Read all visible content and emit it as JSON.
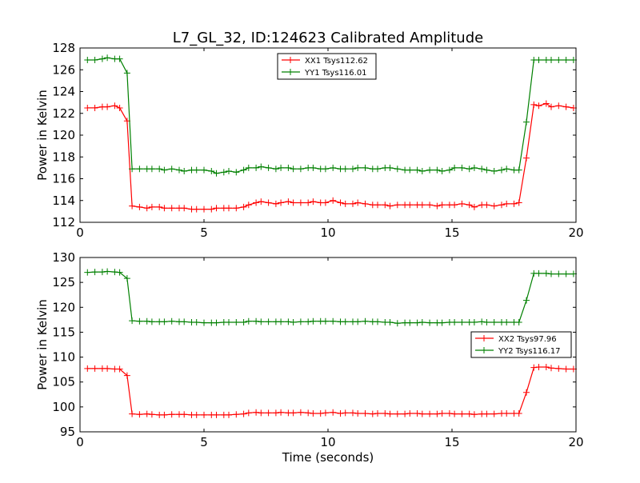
{
  "figure": {
    "title": "L7_GL_32, ID:124623 Calibrated Amplitude",
    "xlabel": "Time (seconds)"
  },
  "chart_data": [
    {
      "type": "line",
      "title": "L7_GL_32, ID:124623 Calibrated Amplitude",
      "xlabel": "",
      "ylabel": "Power in Kelvin",
      "xlim": [
        0,
        20
      ],
      "ylim": [
        112,
        128
      ],
      "xticks": [
        "0",
        "5",
        "10",
        "15",
        "20"
      ],
      "yticks": [
        "112",
        "114",
        "116",
        "118",
        "120",
        "122",
        "124",
        "126",
        "128"
      ],
      "grid": false,
      "legend": "top-center",
      "x": [
        0.3,
        0.6,
        0.9,
        1.1,
        1.4,
        1.6,
        1.9,
        2.1,
        2.4,
        2.7,
        2.9,
        3.2,
        3.4,
        3.7,
        4.0,
        4.2,
        4.5,
        4.7,
        5.0,
        5.3,
        5.5,
        5.8,
        6.0,
        6.3,
        6.6,
        6.8,
        7.1,
        7.3,
        7.6,
        7.9,
        8.1,
        8.4,
        8.6,
        8.9,
        9.2,
        9.4,
        9.7,
        9.9,
        10.2,
        10.5,
        10.7,
        11.0,
        11.2,
        11.5,
        11.8,
        12.0,
        12.3,
        12.5,
        12.8,
        13.1,
        13.3,
        13.6,
        13.8,
        14.1,
        14.4,
        14.6,
        14.9,
        15.1,
        15.4,
        15.7,
        15.9,
        16.2,
        16.4,
        16.7,
        17.0,
        17.2,
        17.5,
        17.7,
        18.0,
        18.3,
        18.5,
        18.8,
        19.0,
        19.3,
        19.6,
        19.9
      ],
      "series": [
        {
          "name": "XX1 Tsys112.62",
          "color": "#ff0000",
          "values": [
            122.5,
            122.5,
            122.6,
            122.6,
            122.7,
            122.5,
            121.3,
            113.5,
            113.4,
            113.3,
            113.4,
            113.4,
            113.3,
            113.3,
            113.3,
            113.3,
            113.2,
            113.2,
            113.2,
            113.2,
            113.3,
            113.3,
            113.3,
            113.3,
            113.4,
            113.6,
            113.8,
            113.9,
            113.8,
            113.7,
            113.8,
            113.9,
            113.8,
            113.8,
            113.8,
            113.9,
            113.8,
            113.8,
            114.0,
            113.8,
            113.7,
            113.7,
            113.8,
            113.7,
            113.6,
            113.6,
            113.6,
            113.5,
            113.6,
            113.6,
            113.6,
            113.6,
            113.6,
            113.6,
            113.5,
            113.6,
            113.6,
            113.6,
            113.7,
            113.6,
            113.4,
            113.6,
            113.6,
            113.5,
            113.6,
            113.7,
            113.7,
            113.8,
            117.9,
            122.8,
            122.7,
            122.9,
            122.6,
            122.7,
            122.6,
            122.5
          ]
        },
        {
          "name": "YY1 Tsys116.01",
          "color": "#008000",
          "values": [
            126.9,
            126.9,
            127.0,
            127.1,
            127.0,
            127.0,
            125.7,
            116.9,
            116.9,
            116.9,
            116.9,
            116.9,
            116.8,
            116.9,
            116.8,
            116.7,
            116.8,
            116.8,
            116.8,
            116.7,
            116.5,
            116.6,
            116.7,
            116.6,
            116.8,
            117.0,
            117.0,
            117.1,
            117.0,
            116.9,
            117.0,
            117.0,
            116.9,
            116.9,
            117.0,
            117.0,
            116.9,
            116.9,
            117.0,
            116.9,
            116.9,
            116.9,
            117.0,
            117.0,
            116.9,
            116.9,
            117.0,
            117.0,
            116.9,
            116.8,
            116.8,
            116.8,
            116.7,
            116.8,
            116.8,
            116.7,
            116.8,
            117.0,
            117.0,
            116.9,
            117.0,
            116.9,
            116.8,
            116.7,
            116.8,
            116.9,
            116.8,
            116.8,
            121.2,
            126.9,
            126.9,
            126.9,
            126.9,
            126.9,
            126.9,
            126.9
          ]
        }
      ]
    },
    {
      "type": "line",
      "title": "",
      "xlabel": "Time (seconds)",
      "ylabel": "Power in Kelvin",
      "xlim": [
        0,
        20
      ],
      "ylim": [
        95,
        130
      ],
      "xticks": [
        "0",
        "5",
        "10",
        "15",
        "20"
      ],
      "yticks": [
        "95",
        "100",
        "105",
        "110",
        "115",
        "120",
        "125",
        "130"
      ],
      "grid": false,
      "legend": "center-right",
      "x": [
        0.3,
        0.6,
        0.9,
        1.1,
        1.4,
        1.6,
        1.9,
        2.1,
        2.4,
        2.7,
        2.9,
        3.2,
        3.4,
        3.7,
        4.0,
        4.2,
        4.5,
        4.7,
        5.0,
        5.3,
        5.5,
        5.8,
        6.0,
        6.3,
        6.6,
        6.8,
        7.1,
        7.3,
        7.6,
        7.9,
        8.1,
        8.4,
        8.6,
        8.9,
        9.2,
        9.4,
        9.7,
        9.9,
        10.2,
        10.5,
        10.7,
        11.0,
        11.2,
        11.5,
        11.8,
        12.0,
        12.3,
        12.5,
        12.8,
        13.1,
        13.3,
        13.6,
        13.8,
        14.1,
        14.4,
        14.6,
        14.9,
        15.1,
        15.4,
        15.7,
        15.9,
        16.2,
        16.4,
        16.7,
        17.0,
        17.2,
        17.5,
        17.7,
        18.0,
        18.3,
        18.5,
        18.8,
        19.0,
        19.3,
        19.6,
        19.9
      ],
      "series": [
        {
          "name": "XX2 Tsys97.96",
          "color": "#ff0000",
          "values": [
            107.7,
            107.7,
            107.7,
            107.7,
            107.6,
            107.6,
            106.3,
            98.6,
            98.5,
            98.6,
            98.5,
            98.4,
            98.4,
            98.5,
            98.5,
            98.5,
            98.4,
            98.4,
            98.4,
            98.4,
            98.4,
            98.4,
            98.4,
            98.5,
            98.6,
            98.8,
            98.9,
            98.8,
            98.8,
            98.8,
            98.9,
            98.8,
            98.8,
            98.9,
            98.8,
            98.7,
            98.7,
            98.8,
            98.9,
            98.7,
            98.8,
            98.8,
            98.7,
            98.7,
            98.6,
            98.7,
            98.7,
            98.6,
            98.6,
            98.6,
            98.7,
            98.7,
            98.6,
            98.6,
            98.6,
            98.7,
            98.7,
            98.6,
            98.6,
            98.6,
            98.5,
            98.6,
            98.6,
            98.6,
            98.7,
            98.7,
            98.7,
            98.7,
            102.9,
            107.9,
            108.0,
            108.0,
            107.8,
            107.7,
            107.6,
            107.6
          ]
        },
        {
          "name": "YY2 Tsys116.17",
          "color": "#008000",
          "values": [
            127.0,
            127.1,
            127.1,
            127.2,
            127.1,
            127.0,
            125.8,
            117.3,
            117.2,
            117.2,
            117.1,
            117.1,
            117.1,
            117.2,
            117.1,
            117.1,
            117.0,
            117.0,
            116.9,
            116.9,
            116.9,
            117.0,
            117.0,
            117.0,
            117.0,
            117.2,
            117.2,
            117.1,
            117.1,
            117.1,
            117.1,
            117.1,
            117.0,
            117.1,
            117.1,
            117.2,
            117.2,
            117.2,
            117.2,
            117.1,
            117.1,
            117.1,
            117.1,
            117.2,
            117.1,
            117.1,
            117.0,
            117.0,
            116.8,
            116.9,
            116.9,
            116.9,
            117.0,
            116.9,
            116.9,
            116.9,
            117.0,
            117.0,
            117.0,
            117.0,
            117.0,
            117.1,
            117.0,
            117.0,
            117.0,
            117.0,
            117.0,
            117.0,
            121.4,
            126.8,
            126.8,
            126.8,
            126.7,
            126.7,
            126.7,
            126.7
          ]
        }
      ]
    }
  ]
}
